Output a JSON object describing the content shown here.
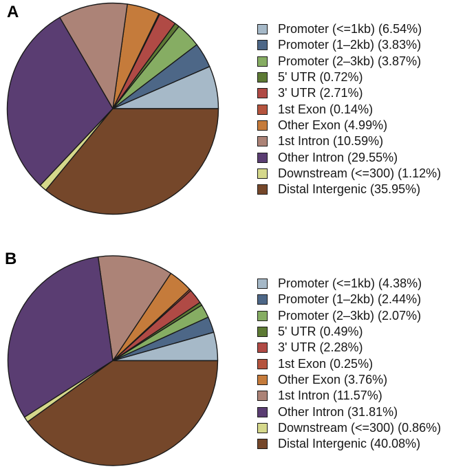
{
  "figure": {
    "background": "#ffffff",
    "stroke_color": "#1a1a1a",
    "stroke_width": 1.4
  },
  "chart_data": [
    {
      "type": "pie",
      "panel_label": "A",
      "title": "",
      "legend_position": "right",
      "start_angle_deg": 0,
      "direction": "counterclockwise",
      "unit": "%",
      "categories": [
        "Promoter (<=1kb)",
        "Promoter (1-2kb)",
        "Promoter (2-3kb)",
        "5' UTR",
        "3' UTR",
        "1st Exon",
        "Other Exon",
        "1st Intron",
        "Other Intron",
        "Downstream (<=300)",
        "Distal Intergenic"
      ],
      "values": [
        6.54,
        3.83,
        3.87,
        0.72,
        2.71,
        0.14,
        4.99,
        10.59,
        29.55,
        1.12,
        35.95
      ],
      "legend_labels": [
        "Promoter (<=1kb) (6.54%)",
        "Promoter (1–2kb) (3.83%)",
        "Promoter (2–3kb) (3.87%)",
        "5' UTR (0.72%)",
        "3' UTR (2.71%)",
        "1st Exon (0.14%)",
        "Other Exon (4.99%)",
        "1st Intron (10.59%)",
        "Other Intron (29.55%)",
        "Downstream (<=300) (1.12%)",
        "Distal Intergenic (35.95%)"
      ],
      "colors": [
        "#a6b9c8",
        "#4d6787",
        "#86ad63",
        "#5d7a34",
        "#b04a45",
        "#b5543e",
        "#c57b3b",
        "#ac8377",
        "#5a3d72",
        "#d5d88b",
        "#75472a"
      ]
    },
    {
      "type": "pie",
      "panel_label": "B",
      "title": "",
      "legend_position": "right",
      "start_angle_deg": 0,
      "direction": "counterclockwise",
      "unit": "%",
      "categories": [
        "Promoter (<=1kb)",
        "Promoter (1-2kb)",
        "Promoter (2-3kb)",
        "5' UTR",
        "3' UTR",
        "1st Exon",
        "Other Exon",
        "1st Intron",
        "Other Intron",
        "Downstream (<=300)",
        "Distal Intergenic"
      ],
      "values": [
        4.38,
        2.44,
        2.07,
        0.49,
        2.28,
        0.25,
        3.76,
        11.57,
        31.81,
        0.86,
        40.08
      ],
      "legend_labels": [
        "Promoter (<=1kb) (4.38%)",
        "Promoter (1–2kb) (2.44%)",
        "Promoter (2–3kb) (2.07%)",
        "5' UTR (0.49%)",
        "3' UTR (2.28%)",
        "1st Exon (0.25%)",
        "Other Exon (3.76%)",
        "1st Intron (11.57%)",
        "Other Intron (31.81%)",
        "Downstream (<=300) (0.86%)",
        "Distal Intergenic (40.08%)"
      ],
      "colors": [
        "#a6b9c8",
        "#4d6787",
        "#86ad63",
        "#5d7a34",
        "#b04a45",
        "#b5543e",
        "#c57b3b",
        "#ac8377",
        "#5a3d72",
        "#d5d88b",
        "#75472a"
      ]
    }
  ]
}
